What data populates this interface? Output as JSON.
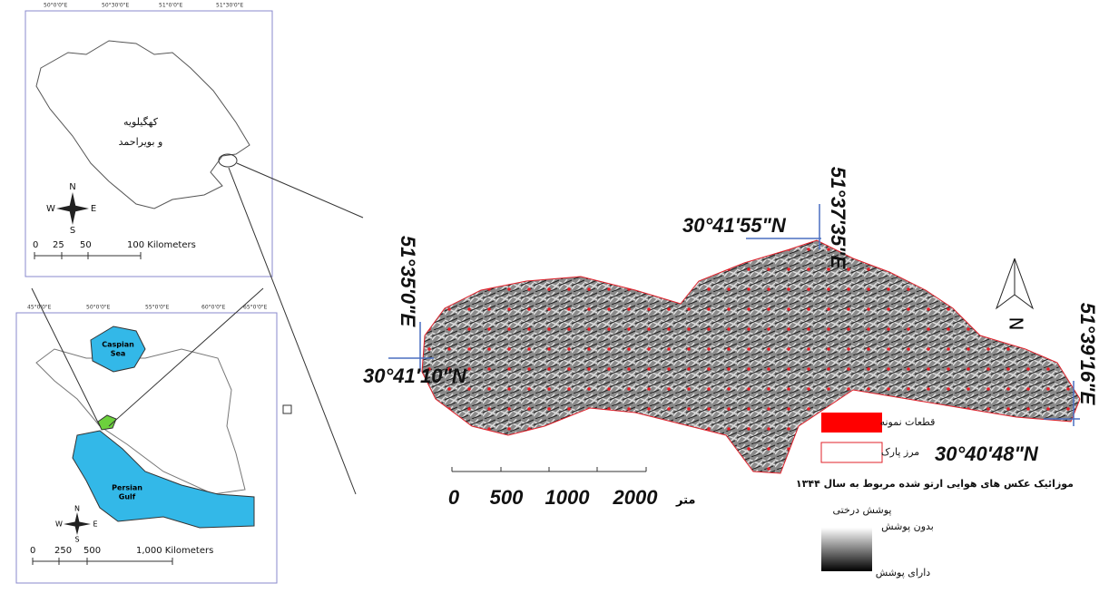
{
  "inset_top": {
    "top_labels": [
      "50°0'0\"E",
      "50°30'0\"E",
      "51°0'0\"E",
      "51°30'0\"E"
    ],
    "province": [
      "کهگیلویه",
      "و بویراحمد"
    ],
    "compass": {
      "n": "N",
      "s": "S",
      "w": "W",
      "e": "E"
    },
    "scale": [
      "0",
      "25",
      "50",
      "100 Kilometers"
    ]
  },
  "inset_bottom": {
    "top_labels": [
      "45°0'0\"E",
      "50°0'0\"E",
      "55°0'0\"E",
      "60°0'0\"E",
      "65°0'0\"E"
    ],
    "sea": [
      "Caspian",
      "Sea"
    ],
    "gulf": [
      "Persian",
      "Gulf"
    ],
    "compass": {
      "n": "N",
      "s": "S",
      "w": "W",
      "e": "E"
    },
    "scale": [
      "0",
      "250",
      "500",
      "1,000 Kilometers"
    ]
  },
  "main_map": {
    "coords": {
      "west_lon": "51°35'0\"E",
      "west_lat": "30°41'10\"N",
      "north_lat": "30°41'55\"N",
      "north_lon": "51°37'35\"E",
      "east_lon": "51°39'16\"E",
      "east_lat": "30°40'48\"N"
    },
    "north": "N",
    "scale": [
      "0",
      "500",
      "1000",
      "2000"
    ],
    "scale_unit": "متر"
  },
  "legend": {
    "samples": "قطعات نمونه",
    "boundary": "مرز پارک",
    "mosaic": "موزائیک عکس های هوایی ارتو شده مربوط به سال ۱۳۴۴",
    "cover_title": "پوشش درختی",
    "no_cover": "بدون پوشش",
    "with_cover": "دارای پوشش"
  }
}
